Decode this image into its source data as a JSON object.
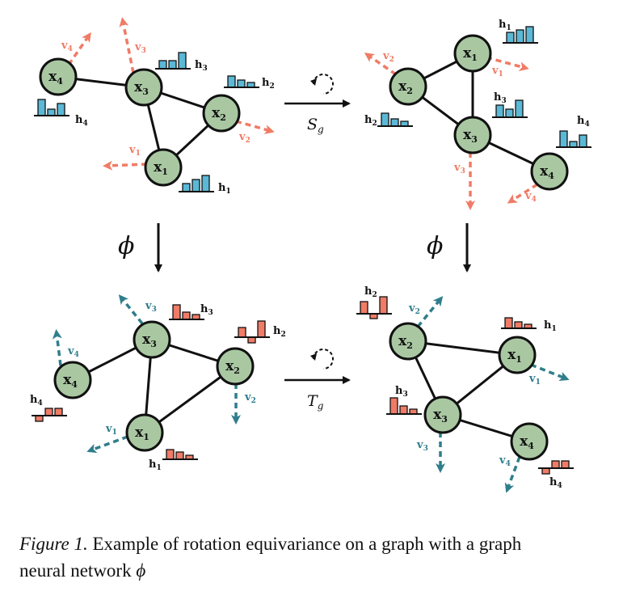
{
  "colors": {
    "node_fill": "#a9c8a2",
    "node_stroke": "#111111",
    "edge": "#111111",
    "input_accent": "#f07b66",
    "output_vector": "#2f7e8b",
    "output_bars": "#f07b66",
    "input_bars": "#5bb8d6"
  },
  "node_labels": {
    "x1": "x",
    "x2": "x",
    "x3": "x",
    "x4": "x",
    "sub1": "1",
    "sub2": "2",
    "sub3": "3",
    "sub4": "4"
  },
  "vector_labels": {
    "v": "v",
    "sub1": "1",
    "sub2": "2",
    "sub3": "3",
    "sub4": "4"
  },
  "feature_labels": {
    "h": "h",
    "sub1": "1",
    "sub2": "2",
    "sub3": "3",
    "sub4": "4"
  },
  "operators": {
    "phi": "ϕ",
    "s": "S",
    "s_sub": "g",
    "t": "T",
    "t_sub": "g"
  },
  "caption": {
    "label": "Figure 1.",
    "line1": " Example of rotation equivariance on a graph with a graph",
    "line2_text": "neural network ",
    "line2_phi": "ϕ"
  }
}
